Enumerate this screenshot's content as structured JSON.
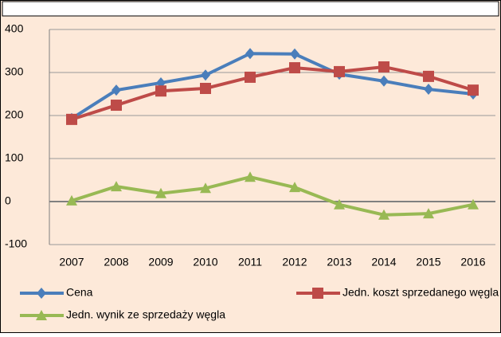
{
  "chart_data": {
    "type": "line",
    "categories": [
      "2007",
      "2008",
      "2009",
      "2010",
      "2011",
      "2012",
      "2013",
      "2014",
      "2015",
      "2016"
    ],
    "series": [
      {
        "name": "Cena",
        "color": "#4a7ebb",
        "marker": "diamond",
        "values": [
          193,
          259,
          276,
          294,
          344,
          343,
          296,
          280,
          261,
          250
        ]
      },
      {
        "name": "Jedn. koszt sprzedanego węgla",
        "color": "#be4b48",
        "marker": "square",
        "values": [
          191,
          224,
          257,
          263,
          289,
          311,
          302,
          313,
          291,
          259
        ]
      },
      {
        "name": "Jedn. wynik ze sprzedaży węgla",
        "color": "#98b954",
        "marker": "triangle",
        "values": [
          2,
          35,
          19,
          31,
          57,
          33,
          -7,
          -31,
          -28,
          -7
        ]
      }
    ],
    "ylim": [
      -100,
      400
    ],
    "yticks": [
      -100,
      0,
      100,
      200,
      300,
      400
    ],
    "grid": true,
    "legend": "bottom"
  }
}
